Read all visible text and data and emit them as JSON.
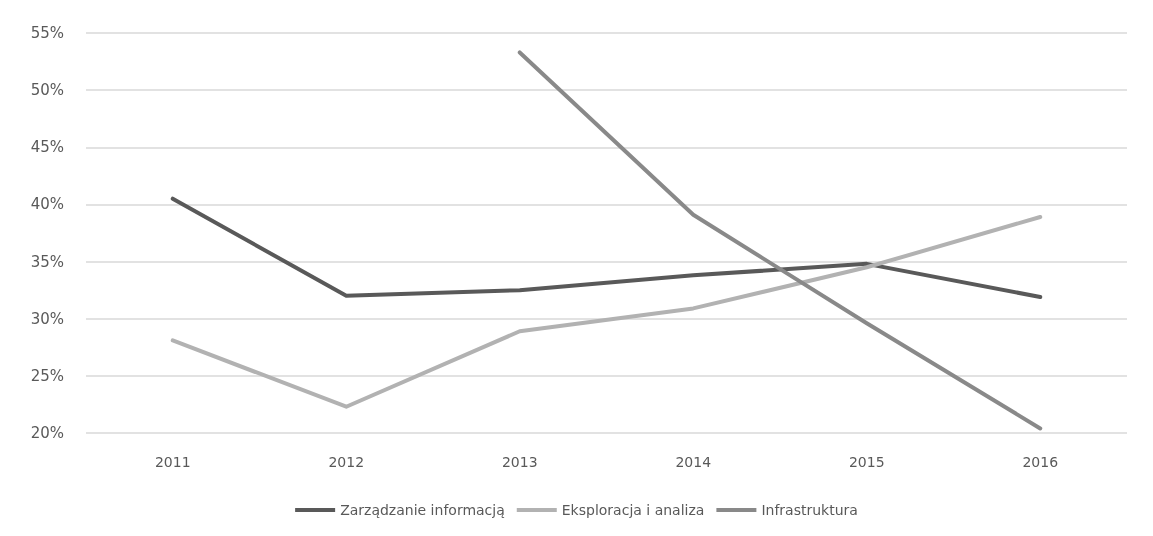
{
  "chart_data": {
    "type": "line",
    "categories": [
      "2011",
      "2012",
      "2013",
      "2014",
      "2015",
      "2016"
    ],
    "series": [
      {
        "name": "Zarządzanie informacją",
        "color": "#595959",
        "values": [
          40.5,
          32.0,
          32.5,
          33.8,
          34.8,
          31.9
        ]
      },
      {
        "name": "Eksploracja i analiza",
        "color": "#b2b2b2",
        "values": [
          28.1,
          22.3,
          28.9,
          30.9,
          34.5,
          38.9
        ]
      },
      {
        "name": "Infrastruktura",
        "color": "#898989",
        "values": [
          null,
          null,
          53.3,
          39.1,
          29.6,
          20.4
        ]
      }
    ],
    "ylim": [
      20,
      55
    ],
    "yticks": [
      {
        "value": 20,
        "label": "20%"
      },
      {
        "value": 25,
        "label": "25%"
      },
      {
        "value": 30,
        "label": "30%"
      },
      {
        "value": 35,
        "label": "35%"
      },
      {
        "value": 40,
        "label": "40%"
      },
      {
        "value": 45,
        "label": "45%"
      },
      {
        "value": 50,
        "label": "50%"
      },
      {
        "value": 55,
        "label": "55%"
      }
    ],
    "grid": "y",
    "legend": "bottom",
    "marker": "none",
    "line_style": "solid"
  }
}
